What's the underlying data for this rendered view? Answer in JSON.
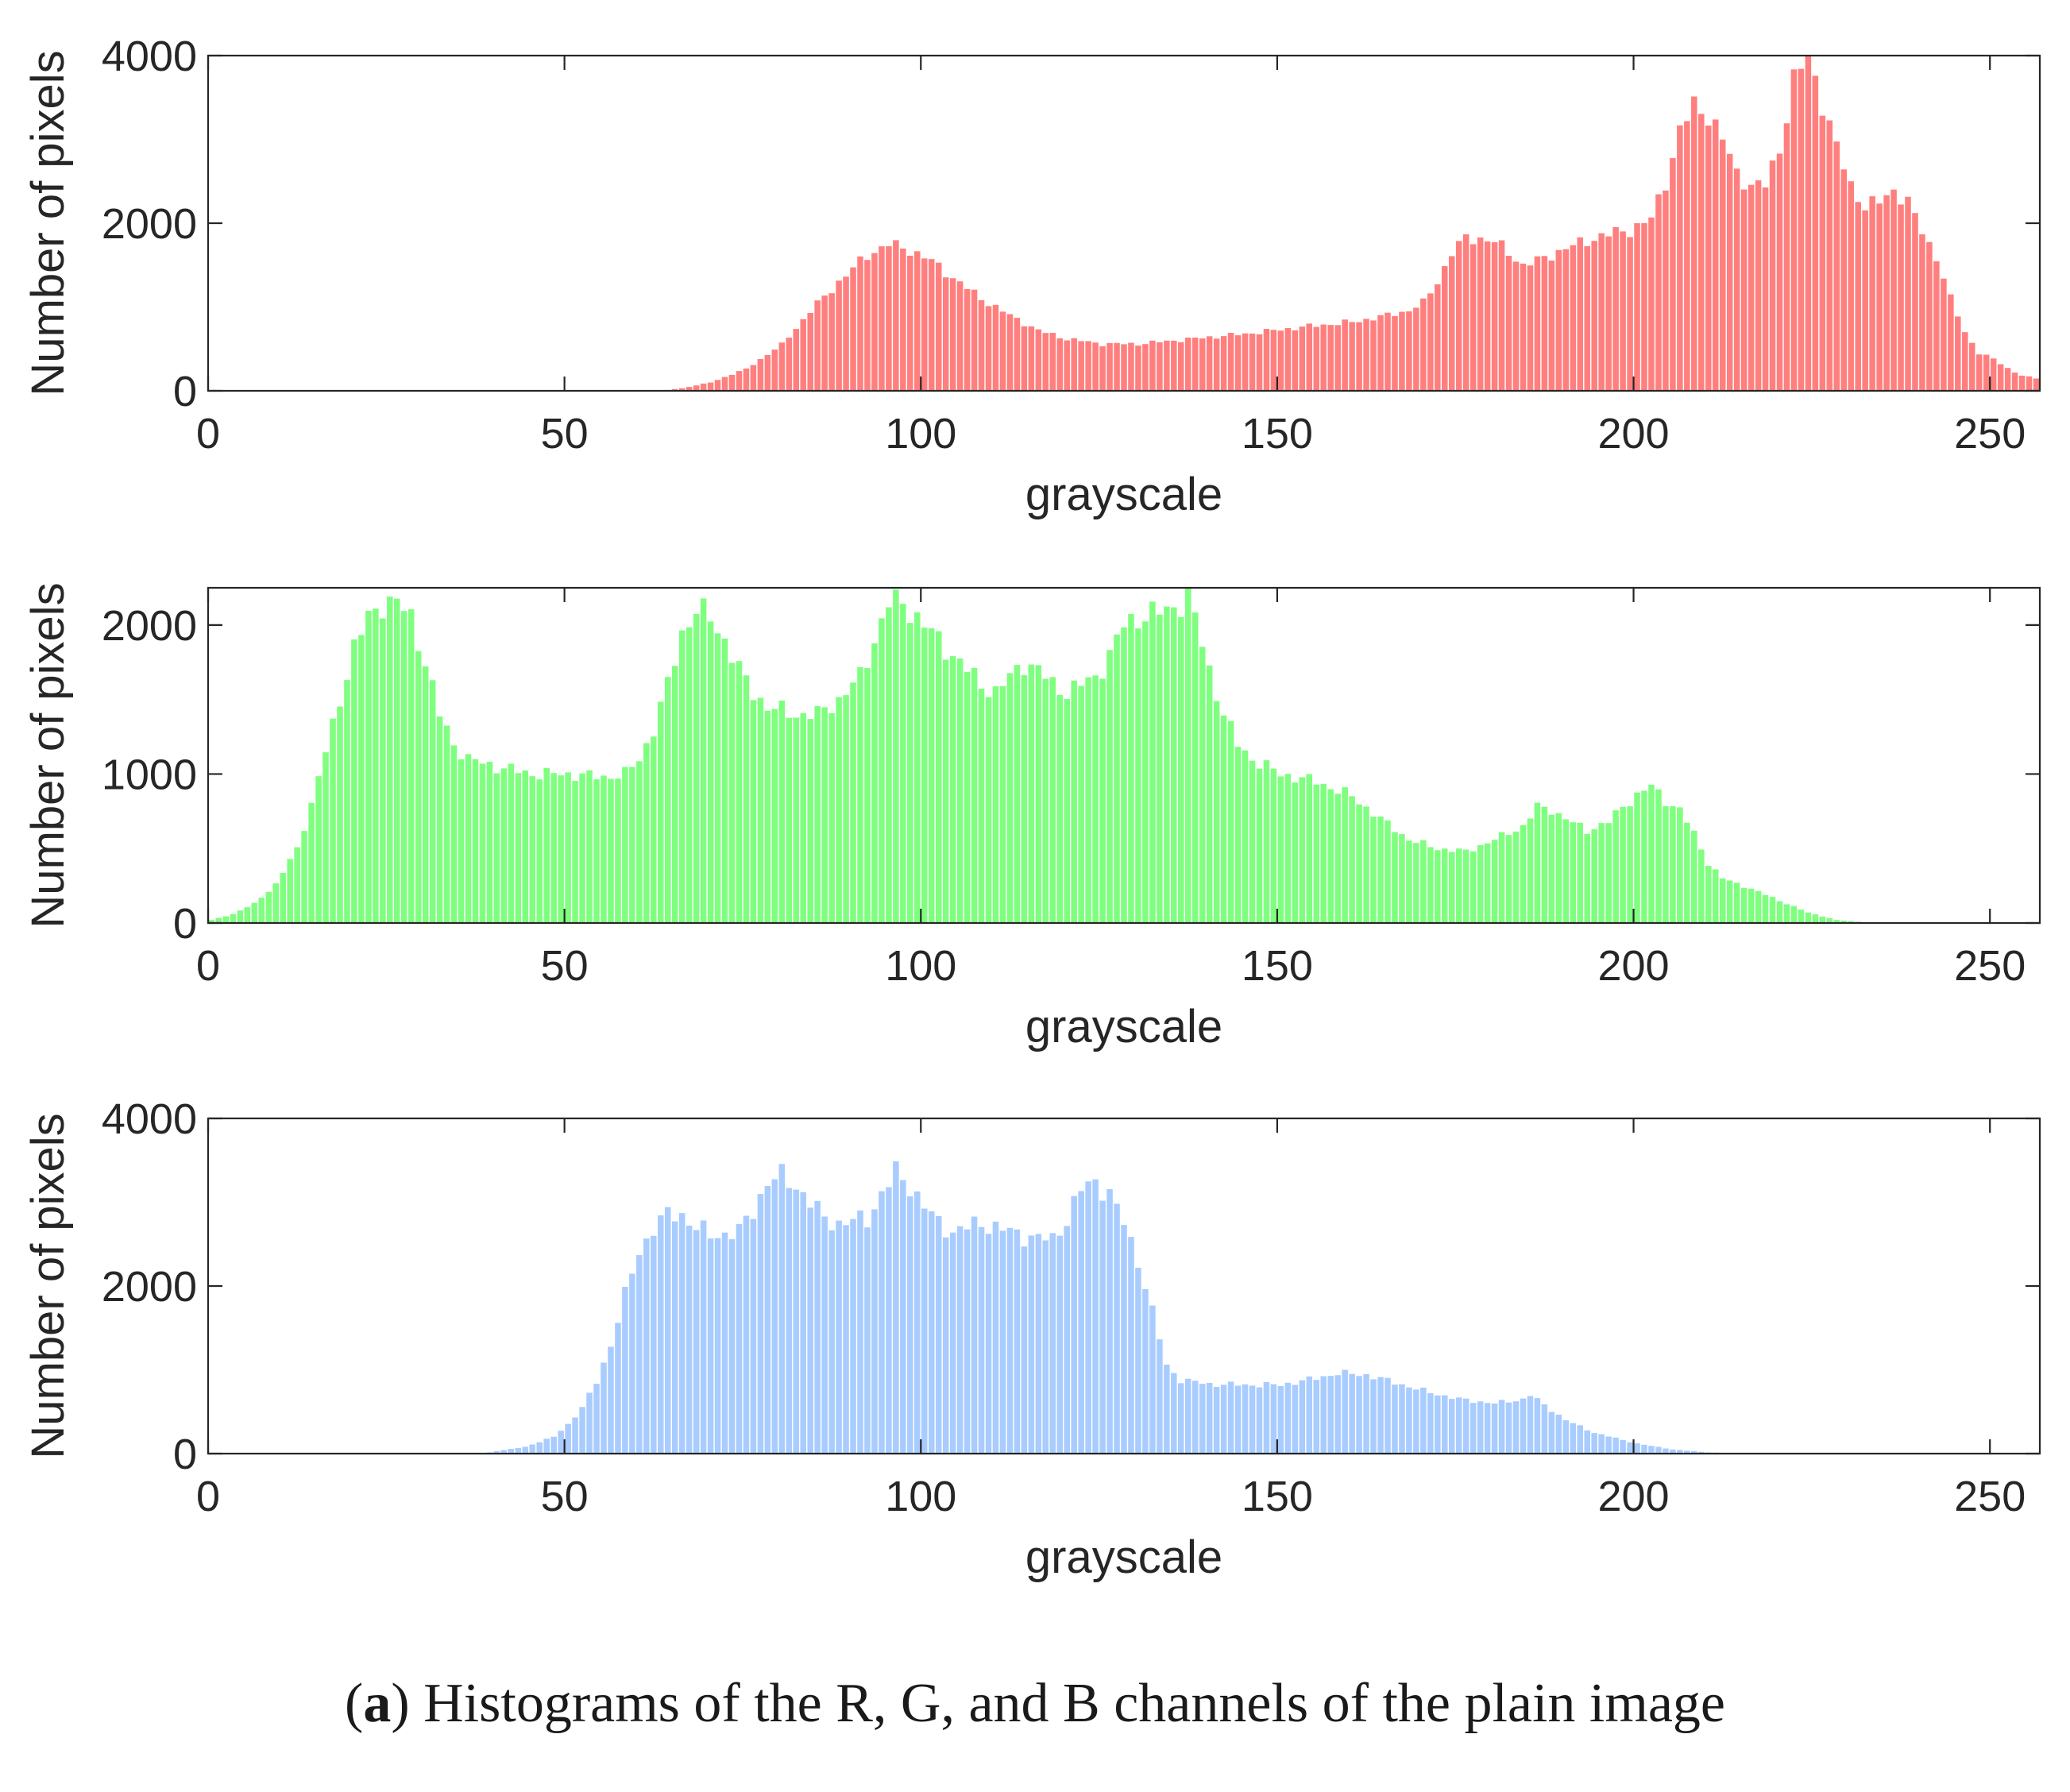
{
  "caption": {
    "open_paren": "(",
    "label": "a",
    "text": ") Histograms of the R, G, and B channels of the plain image"
  },
  "chart_data": [
    {
      "type": "bar",
      "channel": "R",
      "color": "#ff7f7f",
      "xlabel": "grayscale",
      "ylabel": "Number of pixels",
      "xlim": [
        0,
        257
      ],
      "ylim": [
        0,
        4000
      ],
      "xticks": [
        0,
        50,
        100,
        150,
        200,
        250
      ],
      "yticks": [
        0,
        2000,
        4000
      ],
      "grid": false,
      "keypoints": [
        [
          0,
          0
        ],
        [
          62,
          0
        ],
        [
          64,
          10
        ],
        [
          66,
          30
        ],
        [
          70,
          100
        ],
        [
          75,
          260
        ],
        [
          80,
          550
        ],
        [
          84,
          950
        ],
        [
          88,
          1300
        ],
        [
          92,
          1620
        ],
        [
          95,
          1750
        ],
        [
          98,
          1680
        ],
        [
          101,
          1550
        ],
        [
          104,
          1350
        ],
        [
          108,
          1100
        ],
        [
          112,
          900
        ],
        [
          116,
          720
        ],
        [
          120,
          620
        ],
        [
          125,
          560
        ],
        [
          130,
          560
        ],
        [
          135,
          600
        ],
        [
          140,
          640
        ],
        [
          145,
          680
        ],
        [
          150,
          730
        ],
        [
          155,
          780
        ],
        [
          160,
          820
        ],
        [
          165,
          900
        ],
        [
          168,
          960
        ],
        [
          170,
          1050
        ],
        [
          172,
          1300
        ],
        [
          174,
          1650
        ],
        [
          176,
          1820
        ],
        [
          178,
          1820
        ],
        [
          180,
          1780
        ],
        [
          182,
          1650
        ],
        [
          184,
          1500
        ],
        [
          186,
          1550
        ],
        [
          190,
          1700
        ],
        [
          195,
          1850
        ],
        [
          199,
          1920
        ],
        [
          202,
          2050
        ],
        [
          204,
          2500
        ],
        [
          206,
          3100
        ],
        [
          208,
          3400
        ],
        [
          210,
          3300
        ],
        [
          212,
          3000
        ],
        [
          214,
          2600
        ],
        [
          216,
          2450
        ],
        [
          218,
          2450
        ],
        [
          220,
          2900
        ],
        [
          222,
          3700
        ],
        [
          224,
          4000
        ],
        [
          226,
          3450
        ],
        [
          228,
          2900
        ],
        [
          230,
          2450
        ],
        [
          232,
          2200
        ],
        [
          234,
          2250
        ],
        [
          236,
          2400
        ],
        [
          238,
          2250
        ],
        [
          240,
          1900
        ],
        [
          242,
          1600
        ],
        [
          244,
          1100
        ],
        [
          246,
          700
        ],
        [
          248,
          450
        ],
        [
          250,
          380
        ],
        [
          252,
          270
        ],
        [
          254,
          180
        ],
        [
          256,
          150
        ],
        [
          257,
          620
        ]
      ]
    },
    {
      "type": "bar",
      "channel": "G",
      "color": "#7fff7f",
      "xlabel": "grayscale",
      "ylabel": "Number of pixels",
      "xlim": [
        0,
        257
      ],
      "ylim": [
        0,
        2250
      ],
      "xticks": [
        0,
        50,
        100,
        150,
        200,
        250
      ],
      "yticks": [
        0,
        1000,
        2000
      ],
      "grid": false,
      "keypoints": [
        [
          0,
          20
        ],
        [
          3,
          60
        ],
        [
          6,
          130
        ],
        [
          9,
          260
        ],
        [
          12,
          500
        ],
        [
          14,
          800
        ],
        [
          16,
          1150
        ],
        [
          18,
          1500
        ],
        [
          20,
          1850
        ],
        [
          22,
          2050
        ],
        [
          24,
          2150
        ],
        [
          26,
          2150
        ],
        [
          28,
          2050
        ],
        [
          30,
          1750
        ],
        [
          32,
          1400
        ],
        [
          34,
          1200
        ],
        [
          36,
          1100
        ],
        [
          40,
          1050
        ],
        [
          45,
          1000
        ],
        [
          50,
          1000
        ],
        [
          55,
          980
        ],
        [
          58,
          1000
        ],
        [
          60,
          1100
        ],
        [
          62,
          1300
        ],
        [
          64,
          1600
        ],
        [
          66,
          1950
        ],
        [
          68,
          2100
        ],
        [
          70,
          2050
        ],
        [
          72,
          1900
        ],
        [
          74,
          1700
        ],
        [
          76,
          1550
        ],
        [
          78,
          1450
        ],
        [
          82,
          1400
        ],
        [
          85,
          1400
        ],
        [
          88,
          1500
        ],
        [
          91,
          1650
        ],
        [
          93,
          1900
        ],
        [
          95,
          2150
        ],
        [
          97,
          2150
        ],
        [
          100,
          2000
        ],
        [
          103,
          1850
        ],
        [
          106,
          1700
        ],
        [
          108,
          1600
        ],
        [
          110,
          1550
        ],
        [
          112,
          1650
        ],
        [
          114,
          1750
        ],
        [
          116,
          1700
        ],
        [
          118,
          1600
        ],
        [
          120,
          1550
        ],
        [
          122,
          1600
        ],
        [
          124,
          1650
        ],
        [
          126,
          1800
        ],
        [
          128,
          2000
        ],
        [
          130,
          2050
        ],
        [
          134,
          2100
        ],
        [
          136,
          2150
        ],
        [
          137,
          2250
        ],
        [
          138,
          2050
        ],
        [
          140,
          1700
        ],
        [
          142,
          1400
        ],
        [
          144,
          1200
        ],
        [
          146,
          1100
        ],
        [
          150,
          1000
        ],
        [
          155,
          950
        ],
        [
          160,
          850
        ],
        [
          164,
          700
        ],
        [
          168,
          560
        ],
        [
          172,
          500
        ],
        [
          176,
          480
        ],
        [
          180,
          560
        ],
        [
          184,
          650
        ],
        [
          186,
          780
        ],
        [
          188,
          760
        ],
        [
          190,
          700
        ],
        [
          193,
          620
        ],
        [
          196,
          680
        ],
        [
          198,
          780
        ],
        [
          200,
          860
        ],
        [
          202,
          920
        ],
        [
          204,
          820
        ],
        [
          206,
          760
        ],
        [
          208,
          600
        ],
        [
          210,
          400
        ],
        [
          212,
          300
        ],
        [
          216,
          230
        ],
        [
          220,
          150
        ],
        [
          224,
          70
        ],
        [
          228,
          20
        ],
        [
          232,
          5
        ],
        [
          257,
          0
        ]
      ]
    },
    {
      "type": "bar",
      "channel": "B",
      "color": "#a9ccff",
      "xlabel": "grayscale",
      "ylabel": "Number of pixels",
      "xlim": [
        0,
        257
      ],
      "ylim": [
        0,
        4000
      ],
      "xticks": [
        0,
        50,
        100,
        150,
        200,
        250
      ],
      "yticks": [
        0,
        2000,
        4000
      ],
      "grid": false,
      "keypoints": [
        [
          0,
          0
        ],
        [
          38,
          0
        ],
        [
          40,
          30
        ],
        [
          44,
          80
        ],
        [
          48,
          200
        ],
        [
          50,
          350
        ],
        [
          52,
          550
        ],
        [
          54,
          850
        ],
        [
          56,
          1300
        ],
        [
          58,
          1900
        ],
        [
          60,
          2400
        ],
        [
          62,
          2700
        ],
        [
          64,
          2850
        ],
        [
          66,
          2850
        ],
        [
          68,
          2700
        ],
        [
          70,
          2600
        ],
        [
          74,
          2650
        ],
        [
          76,
          2900
        ],
        [
          78,
          3250
        ],
        [
          80,
          3300
        ],
        [
          82,
          3200
        ],
        [
          84,
          3000
        ],
        [
          86,
          2800
        ],
        [
          88,
          2750
        ],
        [
          92,
          2800
        ],
        [
          94,
          3100
        ],
        [
          96,
          3350
        ],
        [
          98,
          3200
        ],
        [
          100,
          2950
        ],
        [
          102,
          2750
        ],
        [
          104,
          2650
        ],
        [
          106,
          2700
        ],
        [
          108,
          2750
        ],
        [
          110,
          2700
        ],
        [
          112,
          2650
        ],
        [
          114,
          2600
        ],
        [
          118,
          2550
        ],
        [
          120,
          2800
        ],
        [
          122,
          3150
        ],
        [
          124,
          3250
        ],
        [
          126,
          3100
        ],
        [
          128,
          2750
        ],
        [
          130,
          2300
        ],
        [
          132,
          1700
        ],
        [
          134,
          1050
        ],
        [
          136,
          880
        ],
        [
          140,
          830
        ],
        [
          145,
          820
        ],
        [
          150,
          820
        ],
        [
          155,
          900
        ],
        [
          158,
          960
        ],
        [
          162,
          940
        ],
        [
          166,
          850
        ],
        [
          170,
          750
        ],
        [
          175,
          650
        ],
        [
          180,
          600
        ],
        [
          184,
          650
        ],
        [
          185,
          700
        ],
        [
          188,
          520
        ],
        [
          190,
          400
        ],
        [
          194,
          250
        ],
        [
          200,
          120
        ],
        [
          205,
          50
        ],
        [
          210,
          15
        ],
        [
          214,
          0
        ],
        [
          257,
          0
        ]
      ]
    }
  ]
}
